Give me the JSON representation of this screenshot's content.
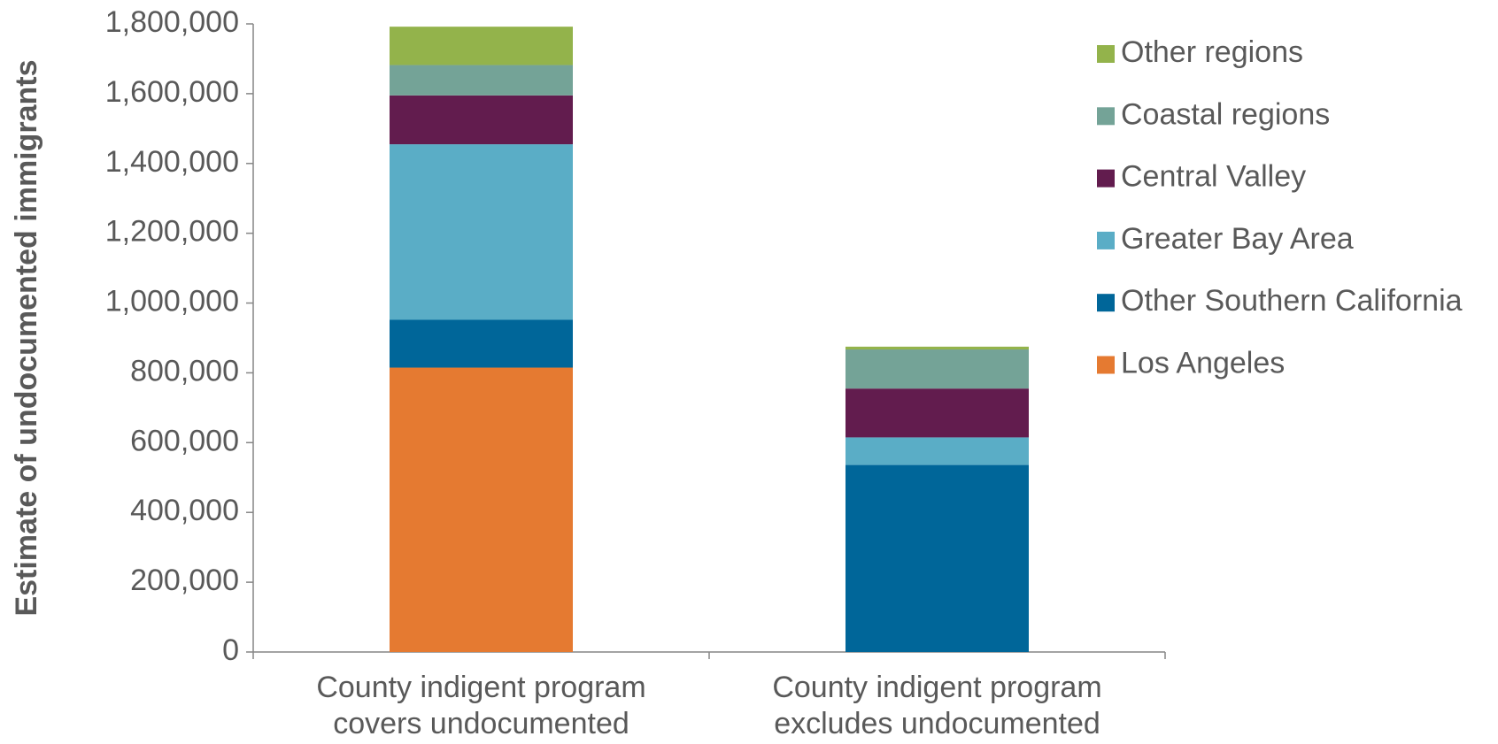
{
  "chart_data": {
    "type": "stacked_bar",
    "y_label": "Estimate of undocumented immigrants",
    "categories": [
      "County indigent program covers undocumented",
      "County indigent program excludes undocumented"
    ],
    "series": [
      {
        "name": "Los Angeles",
        "color": "#e57a31",
        "values": [
          815000,
          0
        ]
      },
      {
        "name": "Other Southern California",
        "color": "#006699",
        "values": [
          137000,
          536000
        ]
      },
      {
        "name": "Greater Bay Area",
        "color": "#5aadc6",
        "values": [
          503000,
          79000
        ]
      },
      {
        "name": "Central Valley",
        "color": "#621c4e",
        "values": [
          140000,
          140000
        ]
      },
      {
        "name": "Coastal regions",
        "color": "#74a397",
        "values": [
          87000,
          112000
        ]
      },
      {
        "name": "Other regions",
        "color": "#93b34b",
        "values": [
          110000,
          8000
        ]
      }
    ],
    "ylim": [
      0,
      1800000
    ],
    "yticks": [
      0,
      {
        "value": 200000,
        "label": "200,000"
      },
      {
        "value": 400000,
        "label": "400,000"
      },
      {
        "value": 600000,
        "label": "600,000"
      },
      {
        "value": 800000,
        "label": "800,000"
      },
      {
        "value": 1000000,
        "label": "1,000,000"
      },
      {
        "value": 1200000,
        "label": "1,200,000"
      },
      {
        "value": 1400000,
        "label": "1,400,000"
      },
      {
        "value": 1600000,
        "label": "1,600,000"
      },
      {
        "value": 1800000,
        "label": "1,800,000"
      }
    ],
    "grid": false,
    "legend": "right"
  }
}
